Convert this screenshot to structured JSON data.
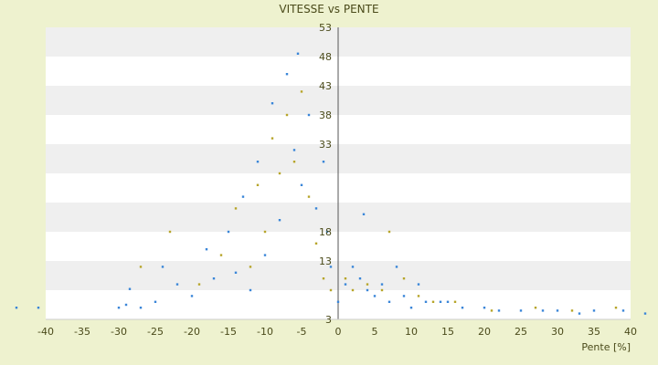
{
  "chart_data": {
    "type": "scatter",
    "title": "VITESSE vs PENTE",
    "xlabel": "Pente [%]",
    "ylabel": "",
    "xlim": [
      -40,
      40
    ],
    "ylim": [
      3,
      53
    ],
    "x_ticks": [
      -40,
      -35,
      -30,
      -25,
      -20,
      -15,
      -10,
      -5,
      0,
      5,
      10,
      15,
      20,
      25,
      30,
      35,
      40
    ],
    "y_ticks": [
      3,
      8,
      13,
      18,
      23,
      28,
      33,
      38,
      43,
      48,
      53
    ],
    "x_tick_labels": [
      "-40",
      "-35",
      "-30",
      "-25",
      "-20",
      "-15",
      "-10",
      "-5",
      "0",
      "5",
      "10",
      "15",
      "20",
      "25",
      "30",
      "35",
      "40"
    ],
    "y_tick_labels": [
      "3",
      "",
      "13",
      "18",
      "",
      "",
      "33",
      "38",
      "43",
      "48",
      "53"
    ],
    "grid": "horizontal alternating bands",
    "legend": "none",
    "colors": {
      "page_background": "#eef2cf",
      "band_light": "#ffffff",
      "band_dark": "#efefef",
      "series_1": "#3a86d8",
      "series_2": "#b7a52a"
    },
    "series": [
      {
        "color": "#3a86d8",
        "points": [
          [
            -44,
            5.0
          ],
          [
            -41,
            5.0
          ],
          [
            -30,
            5.0
          ],
          [
            -29,
            5.5
          ],
          [
            -28.5,
            8.2
          ],
          [
            -27,
            5.0
          ],
          [
            -25,
            6.0
          ],
          [
            -24,
            12.0
          ],
          [
            -22,
            9.0
          ],
          [
            -20,
            7.0
          ],
          [
            -18,
            15.0
          ],
          [
            -17,
            10.0
          ],
          [
            -15,
            18.0
          ],
          [
            -14,
            11.0
          ],
          [
            -13,
            24.0
          ],
          [
            -12,
            8.0
          ],
          [
            -11,
            30.0
          ],
          [
            -10,
            14.0
          ],
          [
            -9,
            40.0
          ],
          [
            -8,
            20.0
          ],
          [
            -7,
            45.0
          ],
          [
            -6,
            32.0
          ],
          [
            -5.5,
            48.5
          ],
          [
            -5,
            26.0
          ],
          [
            -4,
            38.0
          ],
          [
            -3,
            22.0
          ],
          [
            -2,
            30.0
          ],
          [
            -1.5,
            18.0
          ],
          [
            -1,
            12.0
          ],
          [
            0,
            6.0
          ],
          [
            1,
            9.0
          ],
          [
            2,
            12.0
          ],
          [
            3,
            10.0
          ],
          [
            3.5,
            21.0
          ],
          [
            4,
            8.0
          ],
          [
            5,
            7.0
          ],
          [
            6,
            9.0
          ],
          [
            7,
            6.0
          ],
          [
            8,
            12.0
          ],
          [
            9,
            7.0
          ],
          [
            10,
            5.0
          ],
          [
            11,
            9.0
          ],
          [
            12,
            6.0
          ],
          [
            14,
            6.0
          ],
          [
            15,
            6.0
          ],
          [
            17,
            5.0
          ],
          [
            20,
            5.0
          ],
          [
            22,
            4.5
          ],
          [
            25,
            4.5
          ],
          [
            28,
            4.5
          ],
          [
            30,
            4.5
          ],
          [
            33,
            4.0
          ],
          [
            35,
            4.5
          ],
          [
            39,
            4.5
          ],
          [
            42,
            4.0
          ]
        ]
      },
      {
        "color": "#b7a52a",
        "points": [
          [
            -27,
            12.0
          ],
          [
            -23,
            18.0
          ],
          [
            -19,
            9.0
          ],
          [
            -16,
            14.0
          ],
          [
            -14,
            22.0
          ],
          [
            -12,
            12.0
          ],
          [
            -11,
            26.0
          ],
          [
            -10,
            18.0
          ],
          [
            -9,
            34.0
          ],
          [
            -8,
            28.0
          ],
          [
            -7,
            38.0
          ],
          [
            -6,
            30.0
          ],
          [
            -5,
            42.0
          ],
          [
            -4,
            24.0
          ],
          [
            -3,
            16.0
          ],
          [
            -2,
            10.0
          ],
          [
            -1,
            8.0
          ],
          [
            1,
            10.0
          ],
          [
            2,
            8.0
          ],
          [
            4,
            9.0
          ],
          [
            6,
            8.0
          ],
          [
            7,
            18.0
          ],
          [
            9,
            10.0
          ],
          [
            11,
            7.0
          ],
          [
            13,
            6.0
          ],
          [
            16,
            6.0
          ],
          [
            21,
            4.5
          ],
          [
            27,
            5.0
          ],
          [
            32,
            4.5
          ],
          [
            38,
            5.0
          ]
        ]
      }
    ]
  }
}
